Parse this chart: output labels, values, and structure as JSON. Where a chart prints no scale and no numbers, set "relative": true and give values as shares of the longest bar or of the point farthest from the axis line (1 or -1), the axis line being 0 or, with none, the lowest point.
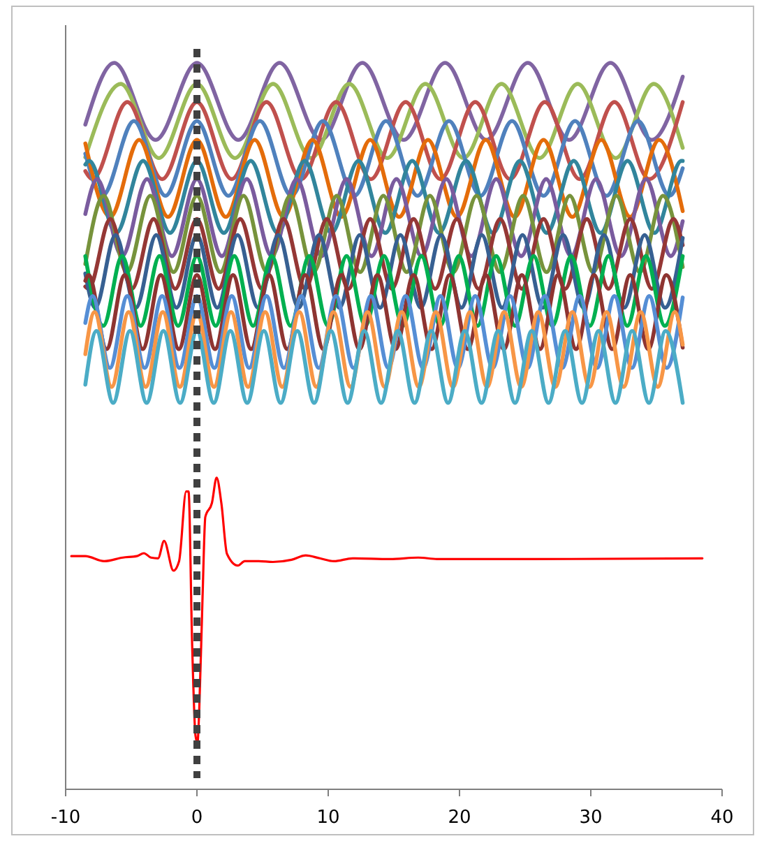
{
  "chart_data": {
    "type": "line",
    "relative": true,
    "xlim": [
      -10,
      40
    ],
    "xticks": [
      -10,
      0,
      10,
      20,
      30,
      40
    ],
    "grid": false,
    "marker": "none",
    "line_style": "solid",
    "ref_lines": [
      {
        "axis": "x",
        "value": 0,
        "color": "#404040",
        "line_style": "dotted"
      }
    ],
    "series": [
      {
        "color": "#8064a2",
        "x": [
          -8.5,
          -6.3,
          -3.15,
          0,
          3.15,
          6.3,
          9.45,
          12.6,
          15.75,
          18.9,
          22.05,
          25.2,
          28.35,
          31.5,
          34.65,
          37
        ],
        "values": [
          0.915,
          1,
          0.894,
          1,
          0.894,
          1,
          0.894,
          1,
          0.894,
          1,
          0.894,
          1,
          0.894,
          1,
          0.894,
          0.981
        ]
      },
      {
        "color": "#9bbb59",
        "x": [
          -8.5,
          -5.8,
          -2.9,
          0,
          2.9,
          5.8,
          8.7,
          11.6,
          14.5,
          17.4,
          20.3,
          23.2,
          26.1,
          29,
          31.9,
          34.8,
          37
        ],
        "values": [
          0.87,
          0.971,
          0.869,
          0.971,
          0.869,
          0.971,
          0.869,
          0.971,
          0.869,
          0.971,
          0.869,
          0.971,
          0.869,
          0.971,
          0.869,
          0.971,
          0.883
        ]
      },
      {
        "color": "#c0504d",
        "x": [
          -8.5,
          -7.95,
          -5.3,
          -2.65,
          0,
          2.65,
          5.3,
          7.95,
          10.6,
          13.25,
          15.9,
          18.55,
          21.2,
          23.85,
          26.5,
          29.15,
          31.8,
          34.45,
          37
        ],
        "values": [
          0.851,
          0.84,
          0.946,
          0.84,
          0.946,
          0.84,
          0.946,
          0.84,
          0.946,
          0.84,
          0.946,
          0.84,
          0.946,
          0.84,
          0.946,
          0.84,
          0.946,
          0.84,
          0.946
        ]
      },
      {
        "color": "#4f81bd",
        "x": [
          -8.5,
          -7.2,
          -4.8,
          -2.4,
          0,
          2.4,
          4.8,
          7.2,
          9.6,
          12,
          14.4,
          16.8,
          19.2,
          21.6,
          24,
          26.4,
          28.8,
          31.2,
          33.6,
          36,
          37
        ],
        "values": [
          0.875,
          0.817,
          0.92,
          0.817,
          0.92,
          0.817,
          0.92,
          0.817,
          0.92,
          0.817,
          0.92,
          0.817,
          0.92,
          0.817,
          0.92,
          0.817,
          0.92,
          0.817,
          0.92,
          0.817,
          0.855
        ]
      },
      {
        "color": "#e46c0a",
        "x": [
          -8.5,
          -6.6,
          -4.4,
          -2.2,
          0,
          2.2,
          4.4,
          6.6,
          8.8,
          11,
          13.2,
          15.4,
          17.6,
          19.8,
          22,
          24.2,
          26.4,
          28.6,
          30.8,
          33,
          35.2,
          37
        ],
        "values": [
          0.889,
          0.788,
          0.894,
          0.788,
          0.894,
          0.788,
          0.894,
          0.788,
          0.894,
          0.788,
          0.894,
          0.788,
          0.894,
          0.788,
          0.894,
          0.788,
          0.894,
          0.788,
          0.894,
          0.788,
          0.894,
          0.796
        ]
      },
      {
        "color": "#31859c",
        "x": [
          -8.5,
          -8.2,
          -6.15,
          -4.1,
          -2.05,
          0,
          2.05,
          4.1,
          6.15,
          8.2,
          10.25,
          12.3,
          14.35,
          16.4,
          18.45,
          20.5,
          22.55,
          24.6,
          26.65,
          28.7,
          30.75,
          32.8,
          34.85,
          36.9,
          37
        ],
        "values": [
          0.86,
          0.865,
          0.766,
          0.865,
          0.766,
          0.865,
          0.766,
          0.865,
          0.766,
          0.865,
          0.766,
          0.865,
          0.766,
          0.865,
          0.766,
          0.865,
          0.766,
          0.865,
          0.766,
          0.865,
          0.766,
          0.865,
          0.766,
          0.865,
          0.865
        ]
      },
      {
        "color": "#7a5b9e",
        "x": [
          -8.5,
          -7.6,
          -5.7,
          -3.8,
          -1.9,
          0,
          1.9,
          3.8,
          5.7,
          7.6,
          9.5,
          11.4,
          13.3,
          15.2,
          17.1,
          19,
          20.9,
          22.8,
          24.7,
          26.6,
          28.5,
          30.4,
          32.3,
          34.2,
          36.1,
          37
        ],
        "values": [
          0.792,
          0.84,
          0.734,
          0.84,
          0.734,
          0.84,
          0.734,
          0.84,
          0.734,
          0.84,
          0.734,
          0.84,
          0.734,
          0.84,
          0.734,
          0.84,
          0.734,
          0.84,
          0.734,
          0.84,
          0.734,
          0.84,
          0.734,
          0.84,
          0.734,
          0.782
        ]
      },
      {
        "color": "#77933c",
        "x": [
          -8.5,
          -7.1,
          -5.33,
          -3.55,
          -1.78,
          0,
          1.78,
          3.55,
          5.33,
          7.1,
          8.88,
          10.65,
          12.43,
          14.2,
          15.98,
          17.75,
          19.53,
          21.3,
          23.08,
          24.85,
          26.63,
          28.4,
          30.18,
          31.95,
          33.73,
          35.5,
          37
        ],
        "values": [
          0.723,
          0.817,
          0.712,
          0.817,
          0.712,
          0.817,
          0.712,
          0.817,
          0.712,
          0.817,
          0.712,
          0.817,
          0.712,
          0.817,
          0.712,
          0.817,
          0.712,
          0.817,
          0.712,
          0.817,
          0.712,
          0.817,
          0.712,
          0.817,
          0.712,
          0.817,
          0.719
        ]
      },
      {
        "color": "#953735",
        "x": [
          -8.5,
          -8.25,
          -6.6,
          -4.95,
          -3.3,
          -1.65,
          0,
          1.65,
          3.3,
          4.95,
          6.6,
          8.25,
          9.9,
          11.55,
          13.2,
          14.85,
          16.5,
          18.15,
          19.8,
          21.45,
          23.1,
          24.75,
          26.4,
          28.05,
          29.7,
          31.35,
          33,
          34.65,
          36.3,
          37
        ],
        "values": [
          0.692,
          0.689,
          0.785,
          0.689,
          0.785,
          0.689,
          0.785,
          0.689,
          0.785,
          0.689,
          0.785,
          0.689,
          0.785,
          0.689,
          0.785,
          0.689,
          0.785,
          0.689,
          0.785,
          0.689,
          0.785,
          0.689,
          0.785,
          0.689,
          0.785,
          0.689,
          0.785,
          0.689,
          0.785,
          0.749
        ]
      },
      {
        "color": "#376092",
        "x": [
          -8.5,
          -7.75,
          -6.2,
          -4.65,
          -3.1,
          -1.55,
          0,
          1.55,
          3.1,
          4.65,
          6.2,
          7.75,
          9.3,
          10.85,
          12.4,
          13.95,
          15.5,
          17.05,
          18.6,
          20.15,
          21.7,
          23.25,
          24.8,
          26.35,
          27.9,
          29.45,
          31,
          32.55,
          34.1,
          35.65,
          37
        ],
        "values": [
          0.71,
          0.663,
          0.763,
          0.663,
          0.763,
          0.663,
          0.763,
          0.663,
          0.763,
          0.663,
          0.763,
          0.663,
          0.763,
          0.663,
          0.763,
          0.663,
          0.763,
          0.663,
          0.763,
          0.663,
          0.763,
          0.663,
          0.763,
          0.663,
          0.763,
          0.663,
          0.763,
          0.663,
          0.763,
          0.663,
          0.759
        ]
      },
      {
        "color": "#00b050",
        "x": [
          -8.5,
          -7.13,
          -5.7,
          -4.28,
          -2.85,
          -1.43,
          0,
          1.43,
          2.85,
          4.28,
          5.7,
          7.13,
          8.55,
          9.98,
          11.4,
          12.83,
          14.25,
          15.68,
          17.1,
          18.53,
          19.95,
          21.38,
          22.8,
          24.23,
          25.65,
          27.08,
          28.5,
          29.93,
          31.35,
          32.78,
          34.2,
          35.63,
          37
        ],
        "values": [
          0.734,
          0.638,
          0.734,
          0.638,
          0.734,
          0.638,
          0.734,
          0.638,
          0.734,
          0.638,
          0.734,
          0.638,
          0.734,
          0.638,
          0.734,
          0.638,
          0.734,
          0.638,
          0.734,
          0.638,
          0.734,
          0.638,
          0.734,
          0.638,
          0.734,
          0.638,
          0.734,
          0.638,
          0.734,
          0.638,
          0.734,
          0.638,
          0.734
        ]
      },
      {
        "color": "#8e3431",
        "x": [
          -8.5,
          -8.25,
          -6.88,
          -5.5,
          -4.13,
          -2.75,
          -1.38,
          0,
          1.38,
          2.75,
          4.13,
          5.5,
          6.88,
          8.25,
          9.63,
          11,
          12.38,
          13.75,
          15.13,
          16.5,
          17.88,
          19.25,
          20.63,
          22,
          23.38,
          24.75,
          26.13,
          27.5,
          28.88,
          30.25,
          31.63,
          33,
          34.38,
          35.75,
          37
        ],
        "values": [
          0.7,
          0.708,
          0.606,
          0.708,
          0.606,
          0.708,
          0.606,
          0.708,
          0.606,
          0.708,
          0.606,
          0.708,
          0.606,
          0.708,
          0.606,
          0.708,
          0.606,
          0.708,
          0.606,
          0.708,
          0.606,
          0.708,
          0.606,
          0.708,
          0.606,
          0.708,
          0.606,
          0.708,
          0.606,
          0.708,
          0.606,
          0.708,
          0.606,
          0.708,
          0.608
        ]
      },
      {
        "color": "#558ed5",
        "x": [
          -8.5,
          -7.95,
          -6.63,
          -5.3,
          -3.98,
          -2.65,
          -1.33,
          0,
          1.33,
          2.65,
          3.98,
          5.3,
          6.63,
          7.95,
          9.28,
          10.6,
          11.93,
          13.25,
          14.58,
          15.9,
          17.23,
          18.55,
          19.88,
          21.2,
          22.53,
          23.85,
          25.18,
          26.5,
          27.83,
          29.15,
          30.48,
          31.8,
          33.13,
          34.45,
          35.78,
          37
        ],
        "values": [
          0.642,
          0.679,
          0.58,
          0.679,
          0.58,
          0.679,
          0.58,
          0.679,
          0.58,
          0.679,
          0.58,
          0.679,
          0.58,
          0.679,
          0.58,
          0.679,
          0.58,
          0.679,
          0.58,
          0.679,
          0.58,
          0.679,
          0.58,
          0.679,
          0.58,
          0.679,
          0.58,
          0.679,
          0.58,
          0.679,
          0.58,
          0.679,
          0.58,
          0.679,
          0.58,
          0.677
        ]
      },
      {
        "color": "#f79646",
        "x": [
          -8.5,
          -7.8,
          -6.5,
          -5.2,
          -3.9,
          -2.6,
          -1.3,
          0,
          1.3,
          2.6,
          3.9,
          5.2,
          6.5,
          7.8,
          9.1,
          10.4,
          11.7,
          13,
          14.3,
          15.6,
          16.9,
          18.2,
          19.5,
          20.8,
          22.1,
          23.4,
          24.7,
          26,
          27.3,
          28.6,
          29.9,
          31.2,
          32.5,
          33.8,
          35.1,
          36.4,
          37
        ],
        "values": [
          0.599,
          0.657,
          0.554,
          0.657,
          0.554,
          0.657,
          0.554,
          0.657,
          0.554,
          0.657,
          0.554,
          0.657,
          0.554,
          0.657,
          0.554,
          0.657,
          0.554,
          0.657,
          0.554,
          0.657,
          0.554,
          0.657,
          0.554,
          0.657,
          0.554,
          0.657,
          0.554,
          0.657,
          0.554,
          0.657,
          0.554,
          0.657,
          0.554,
          0.657,
          0.554,
          0.657,
          0.612
        ]
      },
      {
        "color": "#4bacc6",
        "x": [
          -8.5,
          -7.65,
          -6.38,
          -5.1,
          -3.83,
          -2.55,
          -1.28,
          0,
          1.28,
          2.55,
          3.83,
          5.1,
          6.38,
          7.65,
          8.93,
          10.2,
          11.48,
          12.75,
          14.03,
          15.3,
          16.58,
          17.85,
          19.13,
          20.4,
          21.68,
          22.95,
          24.23,
          25.5,
          26.78,
          28.05,
          29.33,
          30.6,
          31.88,
          33.15,
          34.43,
          35.7,
          37
        ],
        "values": [
          0.557,
          0.631,
          0.532,
          0.631,
          0.532,
          0.631,
          0.532,
          0.631,
          0.532,
          0.631,
          0.532,
          0.631,
          0.532,
          0.631,
          0.532,
          0.631,
          0.532,
          0.631,
          0.532,
          0.631,
          0.532,
          0.631,
          0.532,
          0.631,
          0.532,
          0.631,
          0.532,
          0.631,
          0.532,
          0.631,
          0.532,
          0.631,
          0.532,
          0.631,
          0.532,
          0.631,
          0.532
        ]
      },
      {
        "color": "#ff0000",
        "x": [
          -9.57,
          -8.5,
          -7.07,
          -5.64,
          -4.57,
          -4.04,
          -3.5,
          -2.96,
          -2.5,
          -1.79,
          -1.36,
          -0.82,
          -0.64,
          -0.36,
          -0.11,
          0.04,
          0.18,
          0.43,
          0.64,
          1.14,
          1.5,
          1.86,
          2.29,
          3.11,
          3.64,
          4.71,
          5.79,
          7.21,
          8.29,
          9.36,
          10.43,
          11.86,
          14.71,
          16.86,
          18.29,
          25.4,
          38.5
        ],
        "values": [
          0.321,
          0.321,
          0.314,
          0.319,
          0.321,
          0.325,
          0.319,
          0.318,
          0.342,
          0.301,
          0.314,
          0.41,
          0.41,
          0.196,
          0.074,
          0.064,
          0.112,
          0.266,
          0.375,
          0.394,
          0.429,
          0.394,
          0.324,
          0.308,
          0.314,
          0.314,
          0.313,
          0.316,
          0.322,
          0.318,
          0.314,
          0.318,
          0.317,
          0.319,
          0.317,
          0.317,
          0.318
        ]
      }
    ]
  }
}
